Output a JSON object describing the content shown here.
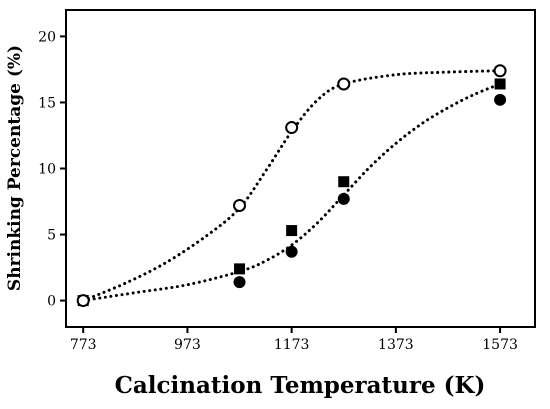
{
  "chart_data": {
    "type": "scatter",
    "title": "",
    "xlabel": "Calcination Temperature (K)",
    "ylabel": "Shrinking Percentage (%)",
    "xlim": [
      740,
      1640
    ],
    "ylim": [
      -2,
      22
    ],
    "x_ticks": [
      773,
      973,
      1173,
      1373,
      1573
    ],
    "y_ticks": [
      0,
      5,
      10,
      15,
      20
    ],
    "x_tick_labels": [
      "773",
      "973",
      "1173",
      "1373",
      "1573"
    ],
    "y_tick_labels": [
      "0",
      "5",
      "10",
      "15",
      "20"
    ],
    "grid": false,
    "legend": "none",
    "series": [
      {
        "marker": "open-circle",
        "color": "#000000",
        "x": [
          773,
          1073,
          1173,
          1273,
          1573
        ],
        "y": [
          0.0,
          7.2,
          13.1,
          16.4,
          17.4
        ],
        "fit_line": "dotted",
        "fit_x": [
          773,
          853,
          933,
          1013,
          1073,
          1123,
          1173,
          1223,
          1273,
          1373,
          1473,
          1573
        ],
        "fit_y": [
          0.0,
          1.3,
          2.9,
          5.0,
          7.0,
          9.8,
          12.8,
          15.2,
          16.4,
          17.1,
          17.3,
          17.4
        ]
      },
      {
        "marker": "filled-square",
        "color": "#000000",
        "x": [
          773,
          1073,
          1173,
          1273,
          1573
        ],
        "y": [
          0.0,
          2.4,
          5.3,
          9.0,
          16.4
        ],
        "fit_line": "none"
      },
      {
        "marker": "filled-circle",
        "color": "#000000",
        "x": [
          773,
          1073,
          1173,
          1273,
          1573
        ],
        "y": [
          0.0,
          1.4,
          3.7,
          7.7,
          15.2
        ],
        "fit_line": "dotted",
        "fit_x": [
          773,
          873,
          973,
          1073,
          1123,
          1173,
          1223,
          1273,
          1323,
          1373,
          1423,
          1473,
          1523,
          1573
        ],
        "fit_y": [
          0.0,
          0.6,
          1.2,
          2.2,
          3.0,
          4.2,
          5.9,
          8.0,
          10.1,
          11.9,
          13.4,
          14.6,
          15.6,
          16.4
        ]
      }
    ]
  }
}
